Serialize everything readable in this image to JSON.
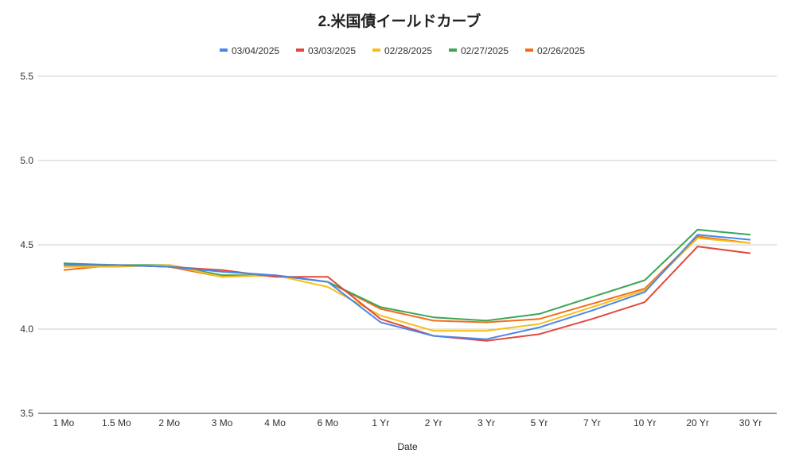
{
  "chart_data": {
    "type": "line",
    "title": "2.米国債イールドカーブ",
    "xlabel": "Date",
    "ylabel": "",
    "categories": [
      "1 Mo",
      "1.5 Mo",
      "2 Mo",
      "3 Mo",
      "4 Mo",
      "6 Mo",
      "1 Yr",
      "2 Yr",
      "3 Yr",
      "5 Yr",
      "7 Yr",
      "10 Yr",
      "20 Yr",
      "30 Yr"
    ],
    "ylim": [
      3.5,
      5.5
    ],
    "yticks": [
      "3.5",
      "4.0",
      "4.5",
      "5.0",
      "5.5"
    ],
    "ytick_values": [
      3.5,
      4.0,
      4.5,
      5.0,
      5.5
    ],
    "grid": true,
    "legend_position": "top-center",
    "series": [
      {
        "name": "03/04/2025",
        "color": "#4a86e8",
        "values": [
          4.38,
          4.38,
          4.37,
          4.34,
          4.32,
          4.28,
          4.04,
          3.96,
          3.94,
          4.01,
          4.11,
          4.22,
          4.56,
          4.53
        ]
      },
      {
        "name": "03/03/2025",
        "color": "#e2483d",
        "values": [
          4.38,
          4.38,
          4.37,
          4.35,
          4.31,
          4.31,
          4.06,
          3.96,
          3.93,
          3.97,
          4.06,
          4.16,
          4.49,
          4.45
        ]
      },
      {
        "name": "02/28/2025",
        "color": "#f5c018",
        "values": [
          4.37,
          4.37,
          4.38,
          4.31,
          4.32,
          4.25,
          4.08,
          3.99,
          3.99,
          4.03,
          4.13,
          4.23,
          4.54,
          4.51
        ]
      },
      {
        "name": "02/27/2025",
        "color": "#3da556",
        "values": [
          4.39,
          4.38,
          4.38,
          4.32,
          4.32,
          4.28,
          4.13,
          4.07,
          4.05,
          4.09,
          4.19,
          4.29,
          4.59,
          4.56
        ]
      },
      {
        "name": "02/26/2025",
        "color": "#f36d17",
        "values": [
          4.35,
          4.38,
          4.37,
          4.31,
          4.32,
          4.28,
          4.12,
          4.05,
          4.04,
          4.06,
          4.15,
          4.24,
          4.55,
          4.51
        ]
      }
    ]
  }
}
